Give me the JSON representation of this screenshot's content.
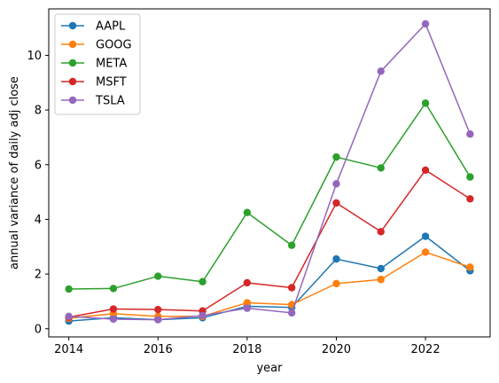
{
  "chart_data": {
    "type": "line",
    "title": "",
    "xlabel": "year",
    "ylabel": "annual variance of daily adj close",
    "xlim": [
      2013.55,
      2023.45
    ],
    "ylim": [
      -0.3,
      11.7
    ],
    "xticks": [
      2014,
      2016,
      2018,
      2020,
      2022
    ],
    "yticks": [
      0,
      2,
      4,
      6,
      8,
      10
    ],
    "grid": false,
    "legend_position": "top-left",
    "x": [
      2014,
      2015,
      2016,
      2017,
      2018,
      2019,
      2020,
      2021,
      2022,
      2023
    ],
    "series": [
      {
        "name": "AAPL",
        "color": "#1f77b4",
        "values": [
          0.28,
          0.4,
          0.33,
          0.4,
          0.82,
          0.78,
          2.55,
          2.2,
          3.38,
          2.12
        ]
      },
      {
        "name": "GOOG",
        "color": "#ff7f0e",
        "values": [
          0.38,
          0.55,
          0.45,
          0.45,
          0.95,
          0.88,
          1.65,
          1.8,
          2.8,
          2.25
        ]
      },
      {
        "name": "META",
        "color": "#2ca02c",
        "values": [
          1.45,
          1.47,
          1.92,
          1.72,
          4.25,
          3.05,
          6.28,
          5.88,
          8.25,
          5.55
        ]
      },
      {
        "name": "MSFT",
        "color": "#d62728",
        "values": [
          0.42,
          0.72,
          0.7,
          0.65,
          1.68,
          1.5,
          4.6,
          3.55,
          5.8,
          4.75
        ]
      },
      {
        "name": "TSLA",
        "color": "#9467bd",
        "values": [
          0.45,
          0.35,
          0.33,
          0.48,
          0.75,
          0.58,
          5.3,
          9.42,
          11.15,
          7.12
        ]
      }
    ]
  }
}
